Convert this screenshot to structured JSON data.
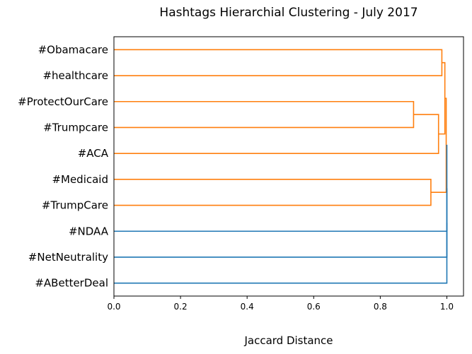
{
  "chart_data": {
    "type": "dendrogram",
    "orientation": "right",
    "title": "Hashtags Hierarchial Clustering - July 2017",
    "xlabel": "Jaccard Distance",
    "ylabel": "",
    "xlim": [
      0.0,
      1.05
    ],
    "x_ticks": [
      "0.0",
      "0.2",
      "0.4",
      "0.6",
      "0.8",
      "1.0"
    ],
    "grid": false,
    "colors": {
      "cluster": "#ff7f0e",
      "above_threshold": "#1f77b4"
    },
    "leaves": [
      "#Obamacare",
      "#healthcare",
      "#ProtectOurCare",
      "#Trumpcare",
      "#ACA",
      "#Medicaid",
      "#TrumpCare",
      "#NDAA",
      "#NetNeutrality",
      "#ABetterDeal"
    ],
    "merges": [
      {
        "id": "n1",
        "left": "#ProtectOurCare",
        "right": "#Trumpcare",
        "distance": 0.9,
        "color": "cluster"
      },
      {
        "id": "n2",
        "left": "n1",
        "right": "#ACA",
        "distance": 0.975,
        "color": "cluster"
      },
      {
        "id": "n3",
        "left": "#Obamacare",
        "right": "#healthcare",
        "distance": 0.985,
        "color": "cluster"
      },
      {
        "id": "n4",
        "left": "n3",
        "right": "n2",
        "distance": 0.994,
        "color": "cluster"
      },
      {
        "id": "n5",
        "left": "#Medicaid",
        "right": "#TrumpCare",
        "distance": 0.952,
        "color": "cluster"
      },
      {
        "id": "n6",
        "left": "n4",
        "right": "n5",
        "distance": 0.998,
        "color": "cluster"
      },
      {
        "id": "n7",
        "left": "n6",
        "right": "#NDAA",
        "distance": 1.0,
        "color": "above_threshold"
      },
      {
        "id": "n8",
        "left": "n7",
        "right": "#NetNeutrality",
        "distance": 1.0,
        "color": "above_threshold"
      },
      {
        "id": "n9",
        "left": "n8",
        "right": "#ABetterDeal",
        "distance": 1.0,
        "color": "above_threshold"
      }
    ]
  }
}
